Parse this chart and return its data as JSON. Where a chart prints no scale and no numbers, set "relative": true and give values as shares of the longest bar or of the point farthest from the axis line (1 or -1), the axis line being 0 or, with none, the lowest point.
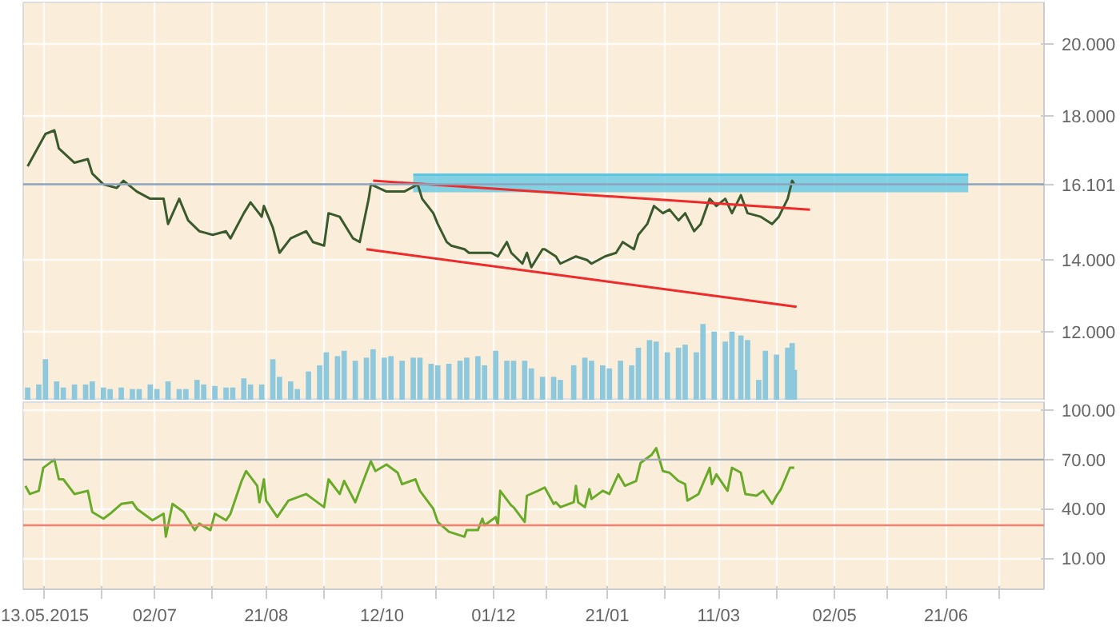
{
  "chart_data": [
    {
      "type": "line",
      "tick_labels": "y",
      "grid": true,
      "xlim": [
        "2015-05-04",
        "2016-08-04"
      ],
      "ylim": [
        10.1,
        21.15
      ],
      "xticks": [
        {
          "value": "2015-05-13",
          "label": null
        },
        {
          "value": "2015-06-08",
          "label": null
        },
        {
          "value": "2015-07-02",
          "label": null
        },
        {
          "value": "2015-07-28",
          "label": null
        },
        {
          "value": "2015-08-21",
          "label": null
        },
        {
          "value": "2015-09-16",
          "label": null
        },
        {
          "value": "2015-10-12",
          "label": null
        },
        {
          "value": "2015-11-05",
          "label": null
        },
        {
          "value": "2015-12-01",
          "label": null
        },
        {
          "value": "2015-12-25",
          "label": null
        },
        {
          "value": "2016-01-21",
          "label": null
        },
        {
          "value": "2016-02-16",
          "label": null
        },
        {
          "value": "2016-03-11",
          "label": null
        },
        {
          "value": "2016-04-06",
          "label": null
        },
        {
          "value": "2016-05-02",
          "label": null
        },
        {
          "value": "2016-05-26",
          "label": null
        },
        {
          "value": "2016-06-21",
          "label": null
        },
        {
          "value": "2016-07-15",
          "label": null
        }
      ],
      "yticks": [
        {
          "value": 12,
          "label": "12.000"
        },
        {
          "value": 14,
          "label": "14.000"
        },
        {
          "value": 18,
          "label": "18.000"
        },
        {
          "value": 20,
          "label": "20.000"
        }
      ],
      "ref_lines": [
        {
          "axis": "y",
          "value": 16.101,
          "label": "16.101",
          "color": "#8da4bf"
        }
      ],
      "series": [
        {
          "type": "line",
          "color": "#5bc6e4",
          "x": [
            "2015-10-26",
            "2016-07-01"
          ],
          "values": [
            16.37,
            16.37
          ],
          "lower": [
            15.88,
            15.88
          ],
          "upper": [
            16.37,
            16.37
          ]
        },
        {
          "type": "line",
          "color": "#3a5a2e",
          "x": [
            "2015-05-06",
            "2015-05-14",
            "2015-05-18",
            "2015-05-20",
            "2015-05-27",
            "2015-06-02",
            "2015-06-04",
            "2015-06-09",
            "2015-06-15",
            "2015-06-18",
            "2015-06-24",
            "2015-06-30",
            "2015-07-06",
            "2015-07-08",
            "2015-07-13",
            "2015-07-17",
            "2015-07-22",
            "2015-07-28",
            "2015-08-03",
            "2015-08-05",
            "2015-08-11",
            "2015-08-14",
            "2015-08-19",
            "2015-08-20",
            "2015-08-24",
            "2015-08-27",
            "2015-09-01",
            "2015-09-08",
            "2015-09-11",
            "2015-09-16",
            "2015-09-18",
            "2015-09-23",
            "2015-09-29",
            "2015-10-02",
            "2015-10-06",
            "2015-10-07",
            "2015-10-14",
            "2015-10-19",
            "2015-10-22",
            "2015-10-28",
            "2015-10-30",
            "2015-11-04",
            "2015-11-06",
            "2015-11-10",
            "2015-11-12",
            "2015-11-18",
            "2015-11-20",
            "2015-11-25",
            "2015-11-30",
            "2015-12-03",
            "2015-12-07",
            "2015-12-09",
            "2015-12-14",
            "2015-12-16",
            "2015-12-18",
            "2015-12-23",
            "2015-12-24",
            "2015-12-29",
            "2015-12-31",
            "2016-01-07",
            "2016-01-12",
            "2016-01-14",
            "2016-01-20",
            "2016-01-25",
            "2016-01-28",
            "2016-02-02",
            "2016-02-04",
            "2016-02-08",
            "2016-02-11",
            "2016-02-15",
            "2016-02-18",
            "2016-02-22",
            "2016-02-25",
            "2016-02-29",
            "2016-03-03",
            "2016-03-07",
            "2016-03-10",
            "2016-03-14",
            "2016-03-17",
            "2016-03-21",
            "2016-03-24",
            "2016-03-30",
            "2016-04-04",
            "2016-04-07",
            "2016-04-11",
            "2016-04-13",
            "2016-04-14"
          ],
          "values": [
            16.6,
            17.5,
            17.6,
            17.1,
            16.7,
            16.8,
            16.4,
            16.1,
            16.0,
            16.2,
            15.9,
            15.7,
            15.7,
            15.0,
            15.7,
            15.1,
            14.8,
            14.7,
            14.8,
            14.6,
            15.3,
            15.6,
            15.2,
            15.5,
            14.9,
            14.2,
            14.6,
            14.8,
            14.5,
            14.4,
            15.3,
            15.2,
            14.6,
            14.5,
            15.7,
            16.1,
            15.9,
            15.9,
            15.9,
            16.1,
            15.7,
            15.3,
            15.0,
            14.5,
            14.4,
            14.3,
            14.2,
            14.2,
            14.2,
            14.1,
            14.5,
            14.2,
            13.9,
            14.2,
            13.8,
            14.3,
            14.3,
            14.1,
            13.9,
            14.1,
            14.0,
            13.9,
            14.1,
            14.2,
            14.5,
            14.3,
            14.7,
            15.0,
            15.5,
            15.3,
            15.4,
            15.1,
            15.3,
            14.8,
            15.0,
            15.7,
            15.5,
            15.7,
            15.3,
            15.8,
            15.3,
            15.2,
            15.0,
            15.2,
            15.7,
            16.2,
            16.1
          ]
        },
        {
          "type": "line",
          "color": "#ee2a2a",
          "x": [
            "2015-10-08",
            "2016-04-21"
          ],
          "values": [
            16.2,
            15.4
          ]
        },
        {
          "type": "line",
          "color": "#ee2a2a",
          "x": [
            "2015-10-05",
            "2016-04-15"
          ],
          "values": [
            14.3,
            12.7
          ]
        }
      ]
    },
    {
      "type": "bar",
      "relative": true,
      "tick_labels": false,
      "color": "#8ec8dc",
      "xlim": [
        "2015-05-04",
        "2016-08-04"
      ],
      "x": [
        "2015-05-06",
        "2015-05-11",
        "2015-05-14",
        "2015-05-19",
        "2015-05-22",
        "2015-05-27",
        "2015-06-01",
        "2015-06-04",
        "2015-06-09",
        "2015-06-12",
        "2015-06-17",
        "2015-06-22",
        "2015-06-25",
        "2015-06-30",
        "2015-07-03",
        "2015-07-08",
        "2015-07-13",
        "2015-07-16",
        "2015-07-21",
        "2015-07-24",
        "2015-07-29",
        "2015-08-03",
        "2015-08-06",
        "2015-08-11",
        "2015-08-14",
        "2015-08-19",
        "2015-08-24",
        "2015-08-27",
        "2015-09-01",
        "2015-09-04",
        "2015-09-09",
        "2015-09-14",
        "2015-09-17",
        "2015-09-22",
        "2015-09-25",
        "2015-09-30",
        "2015-10-05",
        "2015-10-08",
        "2015-10-13",
        "2015-10-16",
        "2015-10-21",
        "2015-10-26",
        "2015-10-29",
        "2015-11-03",
        "2015-11-06",
        "2015-11-11",
        "2015-11-16",
        "2015-11-19",
        "2015-11-24",
        "2015-11-27",
        "2015-12-02",
        "2015-12-07",
        "2015-12-10",
        "2015-12-15",
        "2015-12-18",
        "2015-12-23",
        "2015-12-28",
        "2015-12-31",
        "2016-01-06",
        "2016-01-11",
        "2016-01-14",
        "2016-01-19",
        "2016-01-22",
        "2016-01-27",
        "2016-02-01",
        "2016-02-04",
        "2016-02-09",
        "2016-02-12",
        "2016-02-17",
        "2016-02-22",
        "2016-02-25",
        "2016-03-01",
        "2016-03-04",
        "2016-03-09",
        "2016-03-14",
        "2016-03-17",
        "2016-03-21",
        "2016-03-24",
        "2016-03-29",
        "2016-04-01",
        "2016-04-06",
        "2016-04-11",
        "2016-04-13",
        "2016-04-14"
      ],
      "values": [
        0.17,
        0.21,
        0.54,
        0.25,
        0.17,
        0.21,
        0.21,
        0.25,
        0.17,
        0.15,
        0.17,
        0.15,
        0.15,
        0.21,
        0.15,
        0.25,
        0.15,
        0.15,
        0.27,
        0.21,
        0.19,
        0.17,
        0.17,
        0.29,
        0.21,
        0.21,
        0.54,
        0.31,
        0.25,
        0.15,
        0.38,
        0.46,
        0.63,
        0.58,
        0.65,
        0.52,
        0.56,
        0.67,
        0.56,
        0.58,
        0.52,
        0.56,
        0.56,
        0.48,
        0.46,
        0.48,
        0.52,
        0.56,
        0.58,
        0.46,
        0.65,
        0.52,
        0.52,
        0.52,
        0.42,
        0.31,
        0.31,
        0.27,
        0.46,
        0.56,
        0.52,
        0.46,
        0.42,
        0.52,
        0.46,
        0.69,
        0.79,
        0.77,
        0.63,
        0.69,
        0.73,
        0.63,
        1,
        0.9,
        0.77,
        0.9,
        0.85,
        0.79,
        0.27,
        0.65,
        0.6,
        0.69,
        0.75,
        0.4
      ]
    },
    {
      "type": "line",
      "grid": true,
      "color": "#6aaa2a",
      "xlim": [
        "2015-05-04",
        "2016-08-04"
      ],
      "ylim": [
        -9,
        105
      ],
      "xticks": [
        {
          "value": "2015-05-13",
          "label": "13.05.2015"
        },
        {
          "value": "2015-06-08",
          "label": null
        },
        {
          "value": "2015-07-02",
          "label": "02/07"
        },
        {
          "value": "2015-07-28",
          "label": null
        },
        {
          "value": "2015-08-21",
          "label": "21/08"
        },
        {
          "value": "2015-09-16",
          "label": null
        },
        {
          "value": "2015-10-12",
          "label": "12/10"
        },
        {
          "value": "2015-11-05",
          "label": null
        },
        {
          "value": "2015-12-01",
          "label": "01/12"
        },
        {
          "value": "2015-12-25",
          "label": null
        },
        {
          "value": "2016-01-21",
          "label": "21/01"
        },
        {
          "value": "2016-02-16",
          "label": null
        },
        {
          "value": "2016-03-11",
          "label": "11/03"
        },
        {
          "value": "2016-04-06",
          "label": null
        },
        {
          "value": "2016-05-02",
          "label": "02/05"
        },
        {
          "value": "2016-05-26",
          "label": null
        },
        {
          "value": "2016-06-21",
          "label": "21/06"
        },
        {
          "value": "2016-07-15",
          "label": null
        }
      ],
      "yticks": [
        {
          "value": 10,
          "label": "10.00"
        },
        {
          "value": 40,
          "label": "40.00"
        },
        {
          "value": 70,
          "label": "70.00"
        },
        {
          "value": 100,
          "label": "100.00"
        }
      ],
      "ref_lines": [
        {
          "axis": "y",
          "value": 70,
          "color": "#a0a8b0"
        },
        {
          "axis": "y",
          "value": 30,
          "color": "#f08070"
        }
      ],
      "x": [
        "2015-05-05",
        "2015-05-07",
        "2015-05-11",
        "2015-05-13",
        "2015-05-18",
        "2015-05-20",
        "2015-05-22",
        "2015-05-27",
        "2015-06-02",
        "2015-06-04",
        "2015-06-09",
        "2015-06-12",
        "2015-06-17",
        "2015-06-22",
        "2015-06-24",
        "2015-07-01",
        "2015-07-06",
        "2015-07-07",
        "2015-07-10",
        "2015-07-15",
        "2015-07-20",
        "2015-07-22",
        "2015-07-27",
        "2015-07-29",
        "2015-08-03",
        "2015-08-05",
        "2015-08-10",
        "2015-08-12",
        "2015-08-17",
        "2015-08-18",
        "2015-08-20",
        "2015-08-21",
        "2015-08-26",
        "2015-08-31",
        "2015-09-02",
        "2015-09-08",
        "2015-09-11",
        "2015-09-16",
        "2015-09-18",
        "2015-09-23",
        "2015-09-25",
        "2015-09-30",
        "2015-10-05",
        "2015-10-07",
        "2015-10-09",
        "2015-10-14",
        "2015-10-19",
        "2015-10-21",
        "2015-10-27",
        "2015-10-29",
        "2015-11-04",
        "2015-11-06",
        "2015-11-11",
        "2015-11-18",
        "2015-11-19",
        "2015-11-24",
        "2015-11-26",
        "2015-11-27",
        "2015-12-02",
        "2015-12-03",
        "2015-12-04",
        "2015-12-09",
        "2015-12-10",
        "2015-12-15",
        "2015-12-16",
        "2015-12-21",
        "2015-12-24",
        "2015-12-28",
        "2015-12-29",
        "2015-12-31",
        "2016-01-06",
        "2016-01-07",
        "2016-01-08",
        "2016-01-11",
        "2016-01-13",
        "2016-01-14",
        "2016-01-19",
        "2016-01-22",
        "2016-01-26",
        "2016-01-29",
        "2016-02-03",
        "2016-02-05",
        "2016-02-10",
        "2016-02-12",
        "2016-02-15",
        "2016-02-18",
        "2016-02-22",
        "2016-02-25",
        "2016-02-26",
        "2016-03-02",
        "2016-03-07",
        "2016-03-08",
        "2016-03-10",
        "2016-03-15",
        "2016-03-17",
        "2016-03-21",
        "2016-03-23",
        "2016-03-28",
        "2016-03-31",
        "2016-04-04",
        "2016-04-06",
        "2016-04-08",
        "2016-04-12",
        "2016-04-14"
      ],
      "values": [
        54,
        49,
        51,
        65,
        70,
        58,
        58,
        49,
        51,
        38,
        34,
        37,
        43,
        44,
        40,
        33,
        37,
        23,
        43,
        38,
        27,
        31,
        27,
        37,
        33,
        37,
        57,
        63,
        54,
        44,
        58,
        45,
        35,
        45,
        46,
        49,
        46,
        41,
        58,
        49,
        57,
        44,
        62,
        69,
        63,
        67,
        62,
        55,
        58,
        51,
        40,
        32,
        26,
        23,
        27,
        27,
        34,
        30,
        35,
        30,
        51,
        42,
        41,
        32,
        48,
        51,
        53,
        43,
        44,
        41,
        44,
        54,
        44,
        41,
        52,
        46,
        51,
        49,
        61,
        54,
        57,
        68,
        73,
        77,
        63,
        62,
        57,
        55,
        45,
        49,
        65,
        55,
        61,
        51,
        65,
        62,
        49,
        48,
        51,
        43,
        48,
        52,
        65,
        65
      ]
    }
  ]
}
